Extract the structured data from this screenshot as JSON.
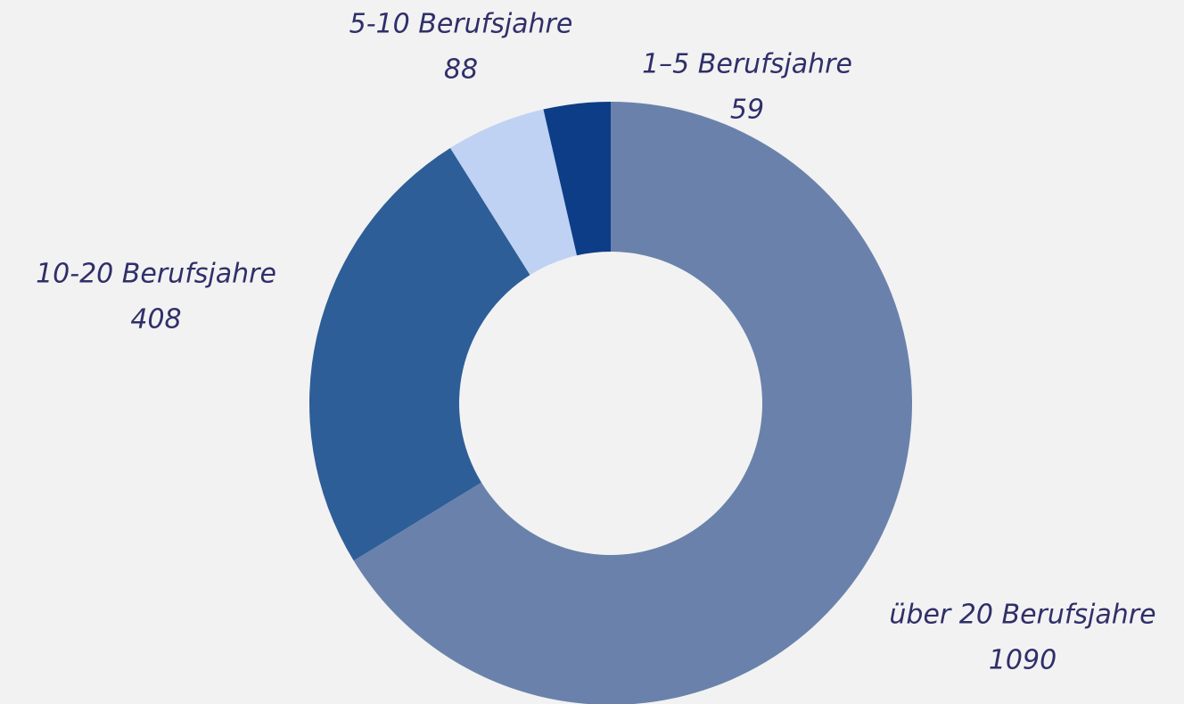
{
  "chart_data": {
    "type": "donut",
    "categories": [
      "über 20 Berufsjahre",
      "10-20 Berufsjahre",
      "5-10 Berufsjahre",
      "1–5 Berufsjahre"
    ],
    "values": [
      1090,
      408,
      88,
      59
    ],
    "colors": [
      "#6a82ab",
      "#2e5e98",
      "#bfd2f3",
      "#0e3d87"
    ]
  }
}
